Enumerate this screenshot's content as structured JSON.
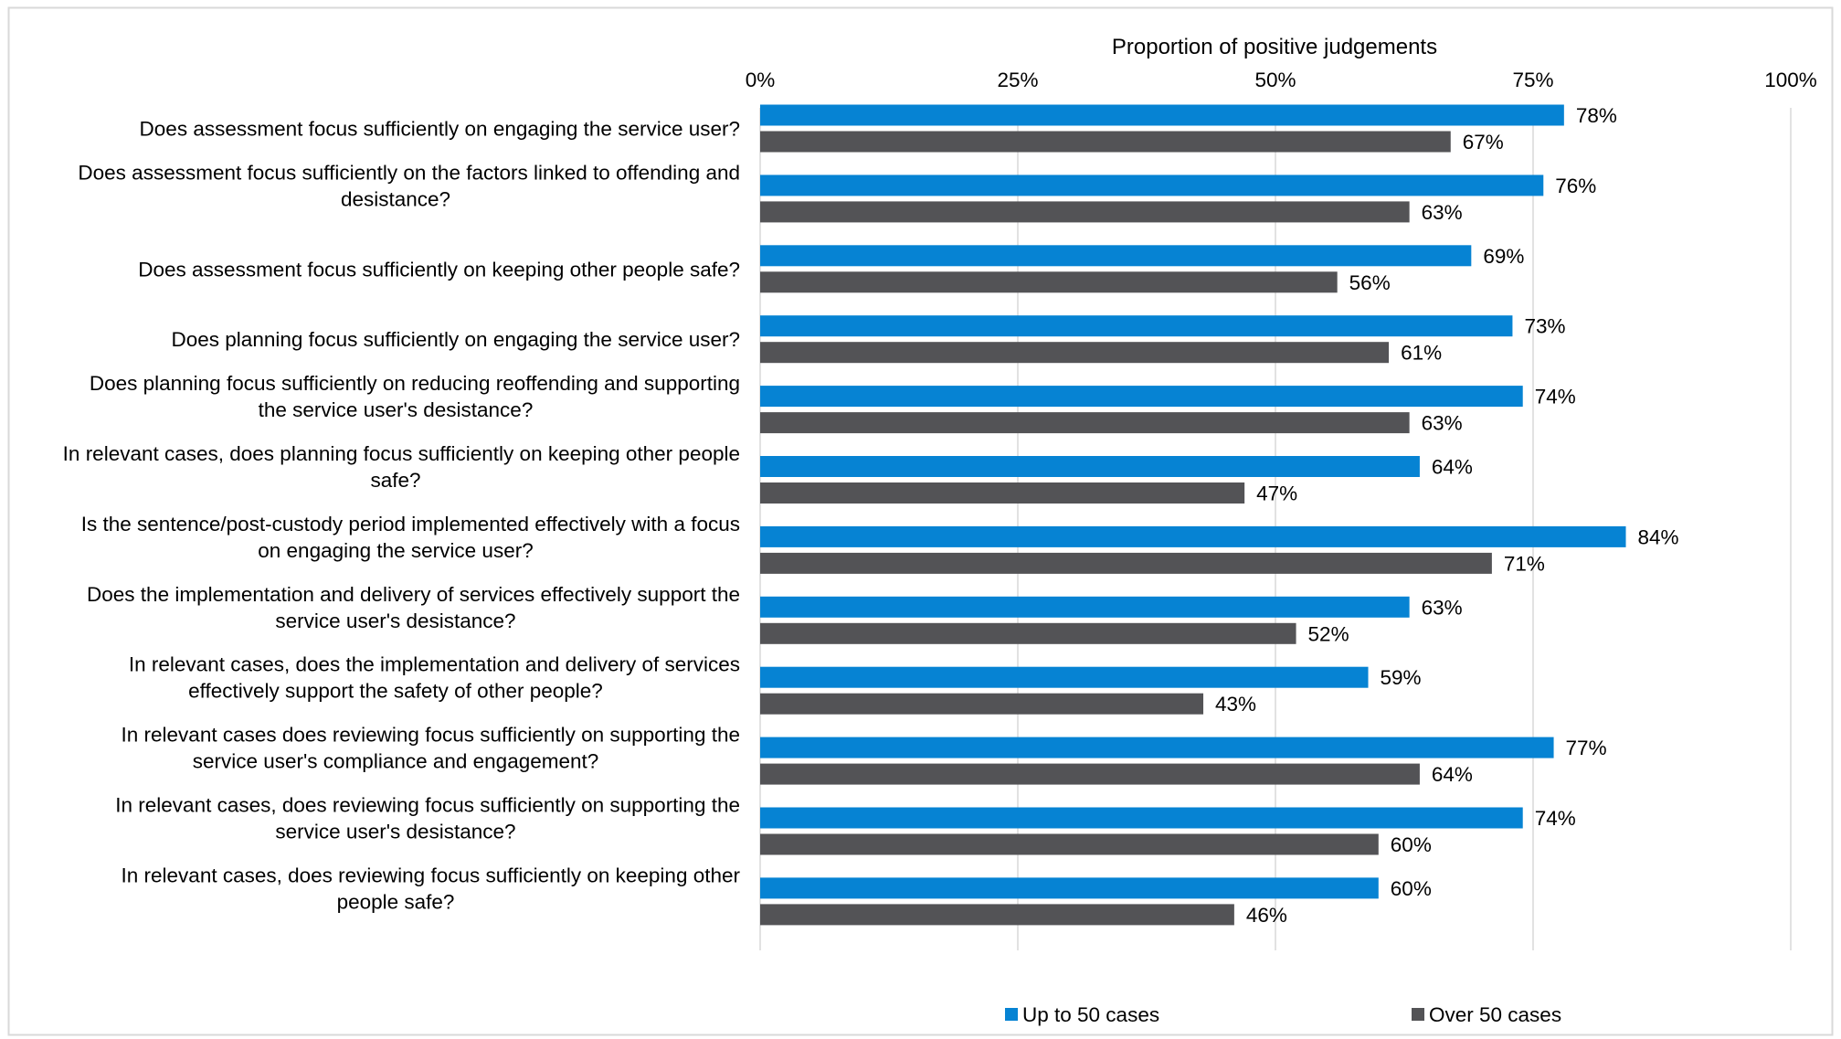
{
  "chart_data": {
    "type": "bar",
    "orientation": "horizontal",
    "title": "",
    "xlabel": "Proportion of positive judgements",
    "ylabel": "",
    "xlim": [
      0,
      100
    ],
    "x_ticks": [
      "0%",
      "25%",
      "50%",
      "75%",
      "100%"
    ],
    "x_tick_values": [
      0,
      25,
      50,
      75,
      100
    ],
    "grid": "vertical",
    "legend_position": "bottom",
    "categories": [
      [
        "Does assessment focus sufficiently on engaging the service user?"
      ],
      [
        "Does assessment focus sufficiently on the factors linked to offending and",
        "desistance?"
      ],
      [
        "Does assessment focus sufficiently on keeping other people safe?"
      ],
      [
        "Does planning focus sufficiently on engaging the service user?"
      ],
      [
        "Does planning focus sufficiently on reducing reoffending and supporting",
        "the service user's desistance?"
      ],
      [
        "In relevant cases, does planning focus sufficiently on keeping other people",
        "safe?"
      ],
      [
        "Is the sentence/post-custody period implemented effectively with a focus",
        "on engaging the service user?"
      ],
      [
        "Does the implementation and delivery of services effectively support the",
        "service user's desistance?"
      ],
      [
        "In relevant cases, does the implementation and delivery of services",
        "effectively support the safety of other people?"
      ],
      [
        "In relevant cases does reviewing focus sufficiently on supporting the",
        "service user's compliance and engagement?"
      ],
      [
        "In relevant cases, does reviewing focus sufficiently on supporting the",
        "service user's desistance?"
      ],
      [
        "In relevant cases, does reviewing focus sufficiently on keeping other",
        "people safe?"
      ]
    ],
    "series": [
      {
        "name": "Up to 50 cases",
        "color": "#0683d3",
        "values": [
          78,
          76,
          69,
          73,
          74,
          64,
          84,
          63,
          59,
          77,
          74,
          60
        ],
        "labels": [
          "78%",
          "76%",
          "69%",
          "73%",
          "74%",
          "64%",
          "84%",
          "63%",
          "59%",
          "77%",
          "74%",
          "60%"
        ]
      },
      {
        "name": "Over 50 cases",
        "color": "#535356",
        "values": [
          67,
          63,
          56,
          61,
          63,
          47,
          71,
          52,
          43,
          64,
          60,
          46
        ],
        "labels": [
          "67%",
          "63%",
          "56%",
          "61%",
          "63%",
          "47%",
          "71%",
          "52%",
          "43%",
          "64%",
          "60%",
          "46%"
        ]
      }
    ]
  }
}
